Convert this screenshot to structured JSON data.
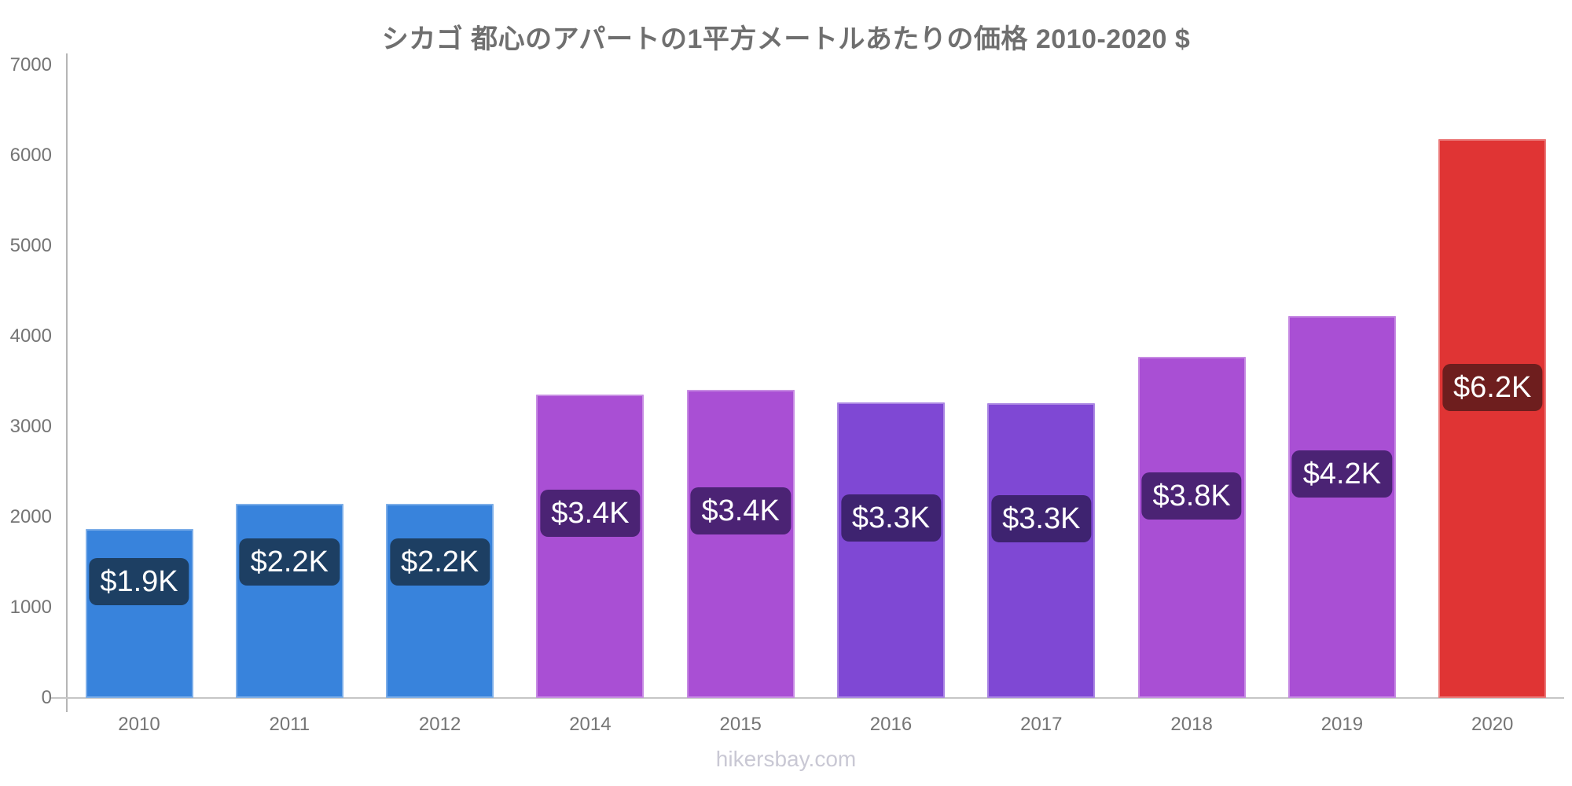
{
  "title": "シカゴ 都心のアパートの1平方メートルあたりの価格 2010-2020 $",
  "footer": "hikersbay.com",
  "colors": {
    "blue_bar": "#3883dc",
    "blue_label_bg": "#1d3f63",
    "purple_bar": "#a94fd4",
    "purple_label_bg": "#4b2374",
    "violet_bar": "#7f48d4",
    "violet_label_bg": "#3e2370",
    "red_bar": "#e03434",
    "red_label_bg": "#6e1e1e",
    "title_text": "#6f6f6f",
    "axis_text": "#757575",
    "footer_text": "#c9c8d4",
    "y_axis_line": "#b5b5b5",
    "x_axis_line": "#c6c6c6"
  },
  "chart_data": {
    "type": "bar",
    "title": "シカゴ 都心のアパートの1平方メートルあたりの価格 2010-2020 $",
    "xlabel": "",
    "ylabel": "",
    "ylim": [
      0,
      7000
    ],
    "y_ticks": [
      0,
      1000,
      2000,
      3000,
      4000,
      5000,
      6000,
      7000
    ],
    "grid": false,
    "legend": false,
    "categories": [
      "2010",
      "2011",
      "2012",
      "2014",
      "2015",
      "2016",
      "2017",
      "2018",
      "2019",
      "2020"
    ],
    "values": [
      1870,
      2150,
      2150,
      3360,
      3410,
      3270,
      3260,
      3770,
      4230,
      6180
    ],
    "bar_labels": [
      "$1.9K",
      "$2.2K",
      "$2.2K",
      "$3.4K",
      "$3.4K",
      "$3.3K",
      "$3.3K",
      "$3.8K",
      "$4.2K",
      "$6.2K"
    ],
    "bar_colors": [
      "#3883dc",
      "#3883dc",
      "#3883dc",
      "#a94fd4",
      "#a94fd4",
      "#7f48d4",
      "#7f48d4",
      "#a94fd4",
      "#a94fd4",
      "#e03434"
    ],
    "label_bg_colors": [
      "#1d3f63",
      "#1d3f63",
      "#1d3f63",
      "#4b2374",
      "#4b2374",
      "#3e2370",
      "#3e2370",
      "#4b2374",
      "#4b2374",
      "#6e1e1e"
    ]
  }
}
